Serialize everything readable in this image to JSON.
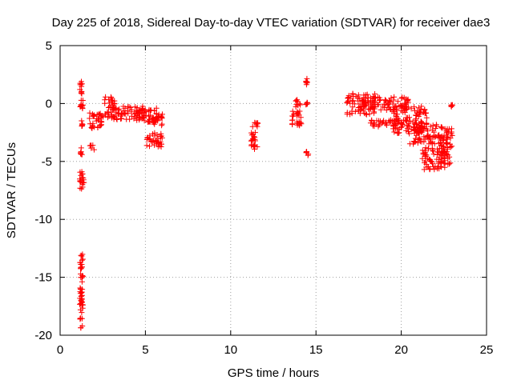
{
  "chart_data": {
    "type": "scatter",
    "title": "Day 225 of 2018, Sidereal Day-to-day VTEC variation (SDTVAR) for receiver dae3",
    "xlabel": "GPS time / hours",
    "ylabel": "SDTVAR / TECUs",
    "xlim": [
      0,
      25
    ],
    "ylim": [
      -20,
      5
    ],
    "xticks": [
      0,
      5,
      10,
      15,
      20,
      25
    ],
    "yticks": [
      5,
      0,
      -5,
      -10,
      -15,
      -20
    ],
    "grid": true,
    "marker": "+",
    "color": "#ff0000",
    "series": [
      {
        "name": "SDTVAR",
        "clusters": [
          {
            "x": [
              1.15,
              1.3
            ],
            "y": [
              0.6,
              1.9
            ]
          },
          {
            "x": [
              1.15,
              1.35
            ],
            "y": [
              -0.6,
              0.4
            ]
          },
          {
            "x": [
              1.15,
              1.35
            ],
            "y": [
              -2.0,
              -1.4
            ]
          },
          {
            "x": [
              1.15,
              1.35
            ],
            "y": [
              -4.4,
              -3.8
            ]
          },
          {
            "x": [
              1.15,
              1.4
            ],
            "y": [
              -7.8,
              -5.8
            ]
          },
          {
            "x": [
              1.15,
              1.35
            ],
            "y": [
              -19.4,
              -13.0
            ]
          },
          {
            "x": [
              1.7,
              2.0
            ],
            "y": [
              -4.0,
              -3.6
            ]
          },
          {
            "x": [
              1.7,
              2.6
            ],
            "y": [
              -2.2,
              -0.8
            ]
          },
          {
            "x": [
              2.6,
              3.2
            ],
            "y": [
              -1.2,
              0.6
            ]
          },
          {
            "x": [
              3.0,
              5.0
            ],
            "y": [
              -1.4,
              -0.2
            ]
          },
          {
            "x": [
              4.4,
              5.8
            ],
            "y": [
              -1.6,
              -0.4
            ]
          },
          {
            "x": [
              5.3,
              6.0
            ],
            "y": [
              -1.9,
              -0.9
            ]
          },
          {
            "x": [
              5.0,
              6.0
            ],
            "y": [
              -3.8,
              -2.5
            ]
          },
          {
            "x": [
              11.2,
              11.6
            ],
            "y": [
              -2.0,
              -1.6
            ]
          },
          {
            "x": [
              11.2,
              11.6
            ],
            "y": [
              -4.0,
              -2.4
            ]
          },
          {
            "x": [
              13.6,
              14.2
            ],
            "y": [
              -1.9,
              -0.5
            ]
          },
          {
            "x": [
              13.8,
              14.1
            ],
            "y": [
              -0.3,
              0.4
            ]
          },
          {
            "x": [
              14.4,
              14.5
            ],
            "y": [
              1.6,
              2.2
            ]
          },
          {
            "x": [
              14.4,
              14.55
            ],
            "y": [
              -4.6,
              -4.0
            ]
          },
          {
            "x": [
              14.4,
              14.5
            ],
            "y": [
              -0.1,
              0.1
            ]
          },
          {
            "x": [
              16.8,
              18.5
            ],
            "y": [
              -1.0,
              0.9
            ]
          },
          {
            "x": [
              18.2,
              20.2
            ],
            "y": [
              -2.0,
              -1.4
            ]
          },
          {
            "x": [
              18.0,
              20.5
            ],
            "y": [
              -0.6,
              0.6
            ]
          },
          {
            "x": [
              19.5,
              21.5
            ],
            "y": [
              -2.6,
              -0.2
            ]
          },
          {
            "x": [
              20.5,
              22.4
            ],
            "y": [
              -3.5,
              -1.8
            ]
          },
          {
            "x": [
              21.2,
              22.6
            ],
            "y": [
              -5.7,
              -3.8
            ]
          },
          {
            "x": [
              22.3,
              23.0
            ],
            "y": [
              -5.3,
              -2.0
            ]
          },
          {
            "x": [
              22.9,
              23.0
            ],
            "y": [
              -0.3,
              -0.1
            ]
          }
        ]
      }
    ]
  }
}
